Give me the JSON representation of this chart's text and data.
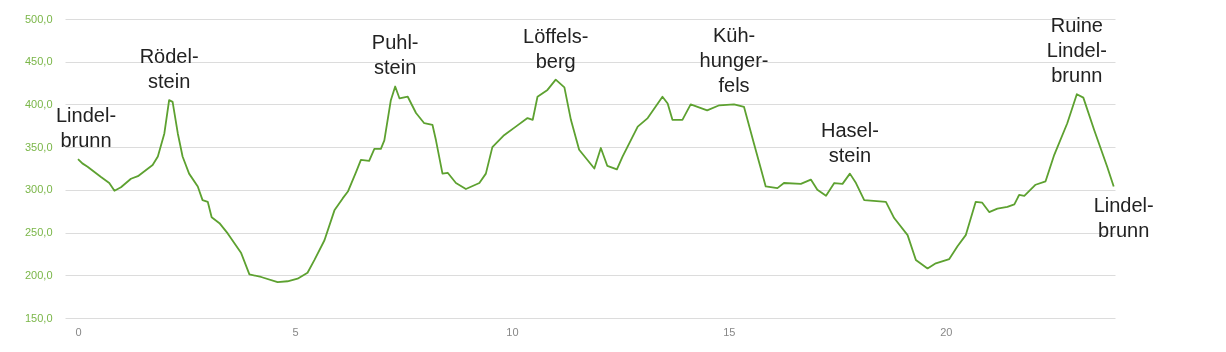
{
  "chart_data": {
    "type": "line",
    "x": [
      0,
      0.1,
      0.22,
      0.53,
      0.72,
      0.84,
      0.99,
      1.22,
      1.38,
      1.72,
      1.84,
      1.99,
      2.1,
      2.18,
      2.3,
      2.41,
      2.56,
      2.76,
      2.87,
      2.99,
      3.08,
      3.26,
      3.45,
      3.76,
      3.95,
      4.22,
      4.6,
      4.83,
      5.06,
      5.29,
      5.45,
      5.68,
      5.91,
      6.1,
      6.22,
      6.41,
      6.52,
      6.71,
      6.83,
      6.98,
      7.06,
      7.21,
      7.31,
      7.41,
      7.6,
      7.79,
      7.98,
      8.17,
      8.25,
      8.4,
      8.52,
      8.71,
      8.94,
      9.25,
      9.4,
      9.55,
      9.82,
      10.09,
      10.36,
      10.48,
      10.59,
      10.82,
      11.01,
      11.21,
      11.36,
      11.55,
      11.9,
      12.05,
      12.2,
      12.42,
      12.55,
      12.9,
      13.13,
      13.47,
      13.59,
      13.7,
      13.93,
      14.12,
      14.5,
      14.78,
      15.12,
      15.35,
      15.58,
      15.85,
      16.12,
      16.27,
      16.66,
      16.89,
      17.04,
      17.24,
      17.43,
      17.62,
      17.79,
      17.93,
      18.12,
      18.62,
      18.81,
      19.12,
      19.31,
      19.58,
      19.77,
      20.08,
      20.27,
      20.46,
      20.69,
      20.84,
      21,
      21.19,
      21.42,
      21.58,
      21.69,
      21.81,
      22.07,
      22.3,
      22.5,
      22.8,
      23.02,
      23.17,
      23.42,
      23.72,
      23.87
    ],
    "series": [
      {
        "color": "#5da130",
        "values": [
          336,
          331,
          327,
          315,
          308,
          299,
          303,
          313,
          316,
          329,
          339,
          366,
          405,
          403,
          366,
          339,
          319,
          304,
          288,
          286,
          268,
          261,
          249,
          226,
          201,
          198,
          192,
          193,
          196,
          203,
          218,
          241,
          276,
          290,
          298,
          321,
          335,
          334,
          348,
          348,
          358,
          405,
          421,
          407,
          409,
          390,
          378,
          376,
          358,
          319,
          320,
          308,
          301,
          308,
          319,
          350,
          364,
          374,
          384,
          382,
          409,
          417,
          429,
          420,
          382,
          347,
          325,
          349,
          328,
          324,
          339,
          374,
          384,
          409,
          401,
          382,
          382,
          400,
          393,
          399,
          400,
          397,
          354,
          304,
          302,
          308,
          307,
          312,
          300,
          293,
          308,
          307,
          319,
          308,
          288,
          286,
          267,
          247,
          218,
          208,
          214,
          219,
          234,
          247,
          286,
          285,
          274,
          278,
          280,
          283,
          294,
          293,
          306,
          310,
          341,
          378,
          412,
          408,
          370,
          327,
          304
        ]
      }
    ],
    "xlim": [
      -0.3,
      23.9
    ],
    "xticks": [
      0,
      5,
      10,
      15,
      20
    ],
    "ylim": [
      150,
      500
    ],
    "yticks": [
      {
        "value": 150,
        "label": "150,0"
      },
      {
        "value": 200,
        "label": "200,0"
      },
      {
        "value": 250,
        "label": "250,0"
      },
      {
        "value": 300,
        "label": "300,0"
      },
      {
        "value": 350,
        "label": "350,0"
      },
      {
        "value": 400,
        "label": "400,0"
      },
      {
        "value": 450,
        "label": "450,0"
      },
      {
        "value": 500,
        "label": "500,0"
      }
    ],
    "grid": "y",
    "annotations": [
      {
        "text": "Lindel-\nbrunn",
        "x": 0,
        "y": 336
      },
      {
        "text": "Rödel-\nstein",
        "x": 2.1,
        "y": 405
      },
      {
        "text": "Puhl-\nstein",
        "x": 7.31,
        "y": 421
      },
      {
        "text": "Löffels-\nberg",
        "x": 11.01,
        "y": 429
      },
      {
        "text": "Küh-\nhunger-\nfels",
        "x": 15.12,
        "y": 400
      },
      {
        "text": "Hasel-\nstein",
        "x": 17.79,
        "y": 319
      },
      {
        "text": "Ruine\nLindel-\nbrunn",
        "x": 23.02,
        "y": 412
      },
      {
        "text": "Lindel-\nbrunn",
        "x": 23.87,
        "y": 304
      }
    ]
  }
}
